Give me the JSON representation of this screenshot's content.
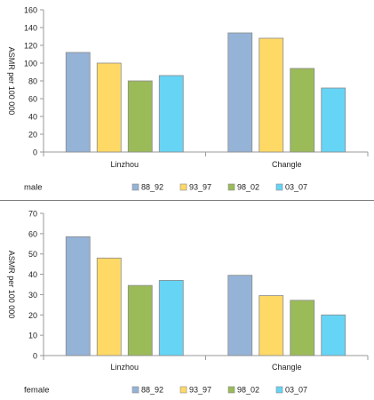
{
  "colors": {
    "series": [
      "#95b3d7",
      "#ffd966",
      "#9bbb59",
      "#66d4f5"
    ],
    "axis": "#999999"
  },
  "chart_data": [
    {
      "type": "bar",
      "panel_label": "male",
      "ylabel": "ASMR  per 100 000",
      "ylim": [
        0,
        160
      ],
      "yticks": [
        0,
        20,
        40,
        60,
        80,
        100,
        120,
        140,
        160
      ],
      "categories": [
        "Linzhou",
        "Changle"
      ],
      "series": [
        {
          "name": "88_92",
          "values": [
            112,
            134
          ]
        },
        {
          "name": "93_97",
          "values": [
            100,
            128
          ]
        },
        {
          "name": "98_02",
          "values": [
            80,
            94
          ]
        },
        {
          "name": "03_07",
          "values": [
            86,
            72
          ]
        }
      ],
      "legend_position": "bottom",
      "grid": false
    },
    {
      "type": "bar",
      "panel_label": "female",
      "ylabel": "ASMR  per 100 000",
      "ylim": [
        0,
        70
      ],
      "yticks": [
        0,
        10,
        20,
        30,
        40,
        50,
        60,
        70
      ],
      "categories": [
        "Linzhou",
        "Changle"
      ],
      "series": [
        {
          "name": "88_92",
          "values": [
            58.5,
            39.5
          ]
        },
        {
          "name": "93_97",
          "values": [
            48,
            29.5
          ]
        },
        {
          "name": "98_02",
          "values": [
            34.5,
            27.2
          ]
        },
        {
          "name": "03_07",
          "values": [
            37,
            20
          ]
        }
      ],
      "legend_position": "bottom",
      "grid": false
    }
  ]
}
